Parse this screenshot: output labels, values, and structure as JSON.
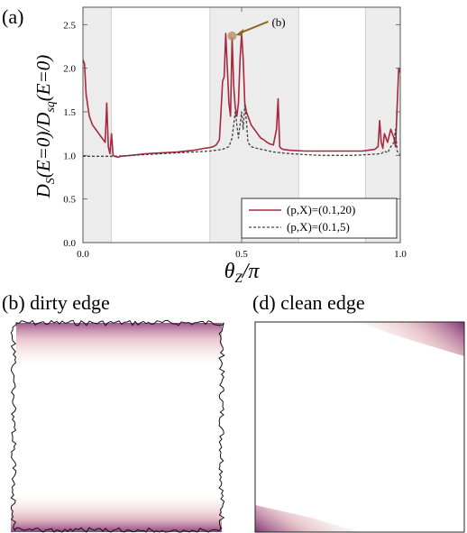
{
  "panels": {
    "a": "(a)",
    "b": "(b) dirty edge",
    "d": "(d) clean edge"
  },
  "chart_data": {
    "type": "line",
    "xlabel_main": "θ",
    "xlabel_sub": "Z",
    "xlabel_tail": "/π",
    "ylabel_parts": [
      "D",
      "S",
      "(E=0)/D",
      "sq",
      "(E=0)"
    ],
    "xlim": [
      0,
      1
    ],
    "ylim": [
      0,
      2.7
    ],
    "xticks": [
      0.0,
      0.5,
      1.0
    ],
    "xtick_labels": [
      "0.0",
      "0.5",
      "1.0"
    ],
    "yticks": [
      0,
      0.5,
      1.0,
      1.5,
      2.0,
      2.5
    ],
    "ytick_labels": [
      "0.0",
      "0.5",
      "1.0",
      "1.5",
      "2.0",
      "2.5"
    ],
    "shaded_regions": [
      [
        0,
        0.09
      ],
      [
        0.4,
        0.68
      ],
      [
        0.89,
        1.0
      ]
    ],
    "annotation": {
      "text": "(b)",
      "x": 0.47,
      "y": 2.37
    },
    "legend_position": "bottom-right",
    "series": [
      {
        "name": "(p,X)=(0.1,20)",
        "color": "#a8283e",
        "dash": "solid",
        "x": [
          0.0,
          0.005,
          0.01,
          0.02,
          0.03,
          0.04,
          0.05,
          0.06,
          0.07,
          0.075,
          0.08,
          0.085,
          0.09,
          0.095,
          0.1,
          0.11,
          0.12,
          0.15,
          0.2,
          0.25,
          0.3,
          0.35,
          0.38,
          0.4,
          0.41,
          0.42,
          0.43,
          0.435,
          0.44,
          0.445,
          0.45,
          0.455,
          0.46,
          0.465,
          0.47,
          0.475,
          0.48,
          0.485,
          0.49,
          0.495,
          0.5,
          0.505,
          0.51,
          0.515,
          0.52,
          0.525,
          0.53,
          0.54,
          0.55,
          0.56,
          0.57,
          0.58,
          0.59,
          0.6,
          0.61,
          0.615,
          0.62,
          0.625,
          0.63,
          0.65,
          0.7,
          0.75,
          0.8,
          0.85,
          0.88,
          0.9,
          0.92,
          0.93,
          0.935,
          0.94,
          0.945,
          0.95,
          0.96,
          0.97,
          0.98,
          0.985,
          0.99,
          0.995,
          1.0
        ],
        "y": [
          2.1,
          2.05,
          1.7,
          1.45,
          1.35,
          1.3,
          1.25,
          1.2,
          1.15,
          1.6,
          1.1,
          1.02,
          1.25,
          1.0,
          0.99,
          0.98,
          0.99,
          1.0,
          1.02,
          1.03,
          1.04,
          1.06,
          1.08,
          1.09,
          1.1,
          1.12,
          1.18,
          1.5,
          1.85,
          1.9,
          2.4,
          2.0,
          1.6,
          1.45,
          2.35,
          1.8,
          1.55,
          1.45,
          1.6,
          2.1,
          2.4,
          2.1,
          1.6,
          1.5,
          1.45,
          1.4,
          1.35,
          1.3,
          1.25,
          1.2,
          1.18,
          1.15,
          1.13,
          1.12,
          1.3,
          1.65,
          1.1,
          1.08,
          1.07,
          1.06,
          1.05,
          1.05,
          1.05,
          1.05,
          1.05,
          1.06,
          1.07,
          1.1,
          1.4,
          1.15,
          1.08,
          1.25,
          1.15,
          1.3,
          1.2,
          1.1,
          1.55,
          2.0,
          1.95
        ]
      },
      {
        "name": "(p,X)=(0.1,5)",
        "color": "#444444",
        "dash": "dashed",
        "x": [
          0.0,
          0.05,
          0.1,
          0.15,
          0.2,
          0.25,
          0.3,
          0.35,
          0.4,
          0.42,
          0.44,
          0.46,
          0.47,
          0.48,
          0.49,
          0.495,
          0.5,
          0.505,
          0.51,
          0.515,
          0.52,
          0.53,
          0.55,
          0.6,
          0.65,
          0.7,
          0.75,
          0.8,
          0.85,
          0.9,
          0.94,
          0.95,
          0.96,
          0.97,
          0.98,
          0.985,
          0.99,
          1.0
        ],
        "y": [
          0.99,
          0.99,
          0.99,
          1.0,
          1.01,
          1.02,
          1.03,
          1.04,
          1.05,
          1.06,
          1.07,
          1.1,
          1.2,
          1.5,
          1.2,
          1.35,
          1.5,
          1.3,
          1.58,
          1.4,
          1.15,
          1.1,
          1.08,
          1.04,
          1.02,
          1.01,
          1.0,
          1.0,
          1.0,
          1.01,
          1.02,
          1.05,
          1.03,
          1.1,
          1.15,
          1.3,
          1.05,
          1.0
        ]
      }
    ]
  }
}
